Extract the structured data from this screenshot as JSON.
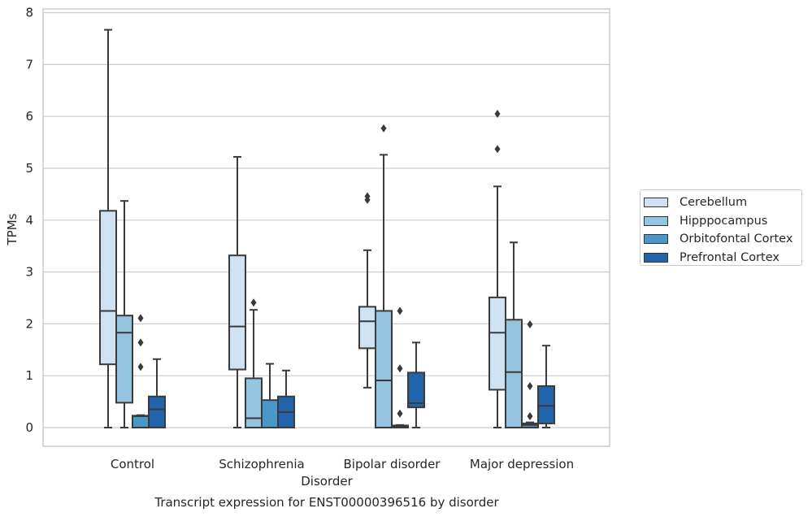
{
  "chart_data": {
    "type": "box",
    "title": "",
    "caption": "Transcript expression for ENST00000396516 by disorder",
    "xlabel": "Disorder",
    "ylabel": "TPMs",
    "ylim": [
      -0.35,
      8.05
    ],
    "yticks": [
      "0",
      "1",
      "2",
      "3",
      "4",
      "5",
      "6",
      "7",
      "8"
    ],
    "grid": true,
    "legend_position": "right",
    "categories": [
      "Control",
      "Schizophrenia",
      "Bipolar disorder",
      "Major depression"
    ],
    "series": [
      {
        "name": "Cerebellum",
        "color": "#d0e1f2",
        "boxes": [
          {
            "whislo": 0.0,
            "q1": 1.22,
            "med": 2.25,
            "q3": 4.18,
            "whishi": 7.67,
            "fliers": []
          },
          {
            "whislo": 0.0,
            "q1": 1.12,
            "med": 1.95,
            "q3": 3.32,
            "whishi": 5.22,
            "fliers": []
          },
          {
            "whislo": 0.77,
            "q1": 1.53,
            "med": 2.05,
            "q3": 2.33,
            "whishi": 3.42,
            "fliers": [
              4.39,
              4.46
            ]
          },
          {
            "whislo": 0.0,
            "q1": 0.73,
            "med": 1.83,
            "q3": 2.51,
            "whishi": 4.65,
            "fliers": [
              5.37,
              6.05
            ]
          }
        ]
      },
      {
        "name": "Hipppocampus",
        "color": "#94c4df",
        "boxes": [
          {
            "whislo": 0.0,
            "q1": 0.48,
            "med": 1.83,
            "q3": 2.16,
            "whishi": 4.37,
            "fliers": []
          },
          {
            "whislo": 0.0,
            "q1": 0.0,
            "med": 0.18,
            "q3": 0.95,
            "whishi": 2.27,
            "fliers": [
              2.41
            ]
          },
          {
            "whislo": 0.0,
            "q1": 0.0,
            "med": 0.91,
            "q3": 2.25,
            "whishi": 5.26,
            "fliers": [
              5.77
            ]
          },
          {
            "whislo": 0.0,
            "q1": 0.0,
            "med": 1.07,
            "q3": 2.08,
            "whishi": 3.57,
            "fliers": []
          }
        ]
      },
      {
        "name": "Orbitofontal Cortex",
        "color": "#4a98c9",
        "boxes": [
          {
            "whislo": 0.0,
            "q1": 0.0,
            "med": 0.22,
            "q3": 0.23,
            "whishi": 0.24,
            "fliers": [
              1.17,
              1.64,
              2.11
            ]
          },
          {
            "whislo": 0.0,
            "q1": 0.0,
            "med": 0.0,
            "q3": 0.53,
            "whishi": 1.23,
            "fliers": []
          },
          {
            "whislo": 0.0,
            "q1": 0.0,
            "med": 0.02,
            "q3": 0.04,
            "whishi": 0.05,
            "fliers": [
              0.27,
              1.14,
              2.25
            ]
          },
          {
            "whislo": 0.0,
            "q1": 0.0,
            "med": 0.05,
            "q3": 0.08,
            "whishi": 0.1,
            "fliers": [
              0.22,
              0.8,
              1.99
            ]
          }
        ]
      },
      {
        "name": "Prefrontal Cortex",
        "color": "#2164ab",
        "boxes": [
          {
            "whislo": 0.0,
            "q1": 0.0,
            "med": 0.35,
            "q3": 0.6,
            "whishi": 1.32,
            "fliers": []
          },
          {
            "whislo": 0.0,
            "q1": 0.0,
            "med": 0.3,
            "q3": 0.6,
            "whishi": 1.1,
            "fliers": []
          },
          {
            "whislo": 0.0,
            "q1": 0.39,
            "med": 0.47,
            "q3": 1.06,
            "whishi": 1.64,
            "fliers": []
          },
          {
            "whislo": 0.0,
            "q1": 0.08,
            "med": 0.42,
            "q3": 0.8,
            "whishi": 1.58,
            "fliers": []
          }
        ]
      }
    ]
  }
}
